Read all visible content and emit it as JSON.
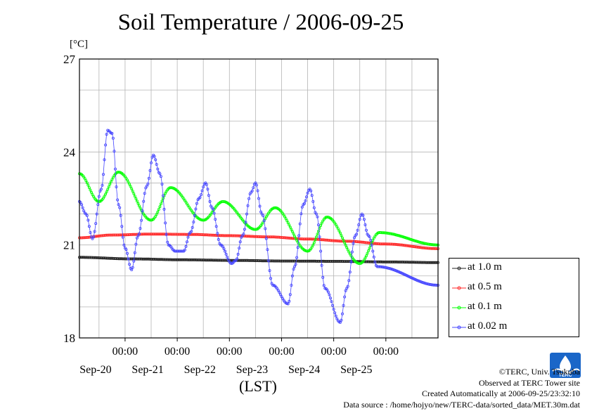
{
  "title": "Soil Temperature / 2006-09-25",
  "unit": "[°C]",
  "xlabel": "(LST)",
  "credits": [
    "©TERC, Univ. Tsukuba",
    "Observed at TERC Tower site",
    "Created Automatically at 2006-09-25/23:32:10",
    "Data source : /home/hojyo/new/TERC-data/sorted_data/MET.30m.dat"
  ],
  "logo": {
    "text": "TERC",
    "icon": "terc-logo-icon",
    "color": "#1a66c8"
  },
  "chart_data": {
    "type": "line",
    "title": "Soil Temperature / 2006-09-25",
    "xlabel": "(LST)",
    "ylabel": "[°C]",
    "x_range": [
      "2006-09-19 03:00",
      "2006-09-26 00:00"
    ],
    "ylim": [
      18,
      27
    ],
    "yticks": [
      18,
      21,
      24,
      27
    ],
    "xtick_labels": [
      {
        "time": "2006-09-20 00:00",
        "label": "00:00",
        "date": "Sep-20"
      },
      {
        "time": "2006-09-21 00:00",
        "label": "00:00",
        "date": "Sep-21"
      },
      {
        "time": "2006-09-22 00:00",
        "label": "00:00",
        "date": "Sep-22"
      },
      {
        "time": "2006-09-23 00:00",
        "label": "00:00",
        "date": "Sep-23"
      },
      {
        "time": "2006-09-24 00:00",
        "label": "00:00",
        "date": "Sep-24"
      },
      {
        "time": "2006-09-25 00:00",
        "label": "00:00",
        "date": "Sep-25"
      }
    ],
    "grid": true,
    "legend_position": "right",
    "series": [
      {
        "name": "at 1.0 m",
        "color": "#222222",
        "points": [
          [
            "2006-09-19 03:00",
            20.6
          ],
          [
            "2006-09-20 03:00",
            20.55
          ],
          [
            "2006-09-21 03:00",
            20.52
          ],
          [
            "2006-09-22 03:00",
            20.5
          ],
          [
            "2006-09-23 03:00",
            20.48
          ],
          [
            "2006-09-24 03:00",
            20.47
          ],
          [
            "2006-09-25 03:00",
            20.45
          ],
          [
            "2006-09-26 00:00",
            20.43
          ]
        ]
      },
      {
        "name": "at 0.5 m",
        "color": "#ff2a2a",
        "points": [
          [
            "2006-09-19 03:00",
            21.23
          ],
          [
            "2006-09-19 18:00",
            21.32
          ],
          [
            "2006-09-20 12:00",
            21.35
          ],
          [
            "2006-09-21 06:00",
            21.34
          ],
          [
            "2006-09-22 00:00",
            21.3
          ],
          [
            "2006-09-22 18:00",
            21.26
          ],
          [
            "2006-09-23 12:00",
            21.19
          ],
          [
            "2006-09-24 06:00",
            21.12
          ],
          [
            "2006-09-25 00:00",
            21.03
          ],
          [
            "2006-09-26 00:00",
            20.88
          ]
        ]
      },
      {
        "name": "at 0.1 m",
        "color": "#00ff00",
        "points": [
          [
            "2006-09-19 03:00",
            23.3
          ],
          [
            "2006-09-19 12:00",
            22.4
          ],
          [
            "2006-09-19 21:00",
            23.35
          ],
          [
            "2006-09-20 12:00",
            21.8
          ],
          [
            "2006-09-20 21:00",
            22.85
          ],
          [
            "2006-09-21 12:00",
            21.8
          ],
          [
            "2006-09-21 21:00",
            22.4
          ],
          [
            "2006-09-22 12:00",
            21.5
          ],
          [
            "2006-09-22 21:00",
            22.2
          ],
          [
            "2006-09-23 12:00",
            20.8
          ],
          [
            "2006-09-23 21:00",
            21.9
          ],
          [
            "2006-09-24 12:00",
            20.4
          ],
          [
            "2006-09-24 21:00",
            21.4
          ],
          [
            "2006-09-26 00:00",
            21.0
          ]
        ]
      },
      {
        "name": "at 0.02 m",
        "color": "#4444ff",
        "points": [
          [
            "2006-09-19 03:00",
            22.4
          ],
          [
            "2006-09-19 06:00",
            22.0
          ],
          [
            "2006-09-19 09:00",
            21.2
          ],
          [
            "2006-09-19 13:00",
            22.8
          ],
          [
            "2006-09-19 16:00",
            24.7
          ],
          [
            "2006-09-19 18:00",
            24.6
          ],
          [
            "2006-09-19 21:00",
            22.3
          ],
          [
            "2006-09-20 00:00",
            20.9
          ],
          [
            "2006-09-20 03:00",
            20.2
          ],
          [
            "2006-09-20 06:00",
            21.3
          ],
          [
            "2006-09-20 10:00",
            22.9
          ],
          [
            "2006-09-20 13:00",
            23.9
          ],
          [
            "2006-09-20 16:00",
            23.3
          ],
          [
            "2006-09-20 20:00",
            21.0
          ],
          [
            "2006-09-20 23:00",
            20.8
          ],
          [
            "2006-09-21 03:00",
            20.8
          ],
          [
            "2006-09-21 06:00",
            21.4
          ],
          [
            "2006-09-21 10:00",
            22.5
          ],
          [
            "2006-09-21 13:00",
            23.0
          ],
          [
            "2006-09-21 16:00",
            22.2
          ],
          [
            "2006-09-21 20:00",
            21.0
          ],
          [
            "2006-09-22 01:00",
            20.4
          ],
          [
            "2006-09-22 03:00",
            20.5
          ],
          [
            "2006-09-22 06:00",
            21.3
          ],
          [
            "2006-09-22 10:00",
            22.7
          ],
          [
            "2006-09-22 12:00",
            23.0
          ],
          [
            "2006-09-22 15:00",
            22.0
          ],
          [
            "2006-09-22 20:00",
            19.7
          ],
          [
            "2006-09-23 03:00",
            19.1
          ],
          [
            "2006-09-23 06:00",
            20.3
          ],
          [
            "2006-09-23 10:00",
            22.3
          ],
          [
            "2006-09-23 13:00",
            22.8
          ],
          [
            "2006-09-23 16:00",
            22.0
          ],
          [
            "2006-09-23 20:00",
            19.6
          ],
          [
            "2006-09-24 03:00",
            18.5
          ],
          [
            "2006-09-24 06:00",
            19.6
          ],
          [
            "2006-09-24 10:00",
            21.3
          ],
          [
            "2006-09-24 13:00",
            22.0
          ],
          [
            "2006-09-24 16:00",
            21.3
          ],
          [
            "2006-09-24 20:00",
            20.3
          ],
          [
            "2006-09-26 00:00",
            19.7
          ]
        ]
      }
    ]
  }
}
